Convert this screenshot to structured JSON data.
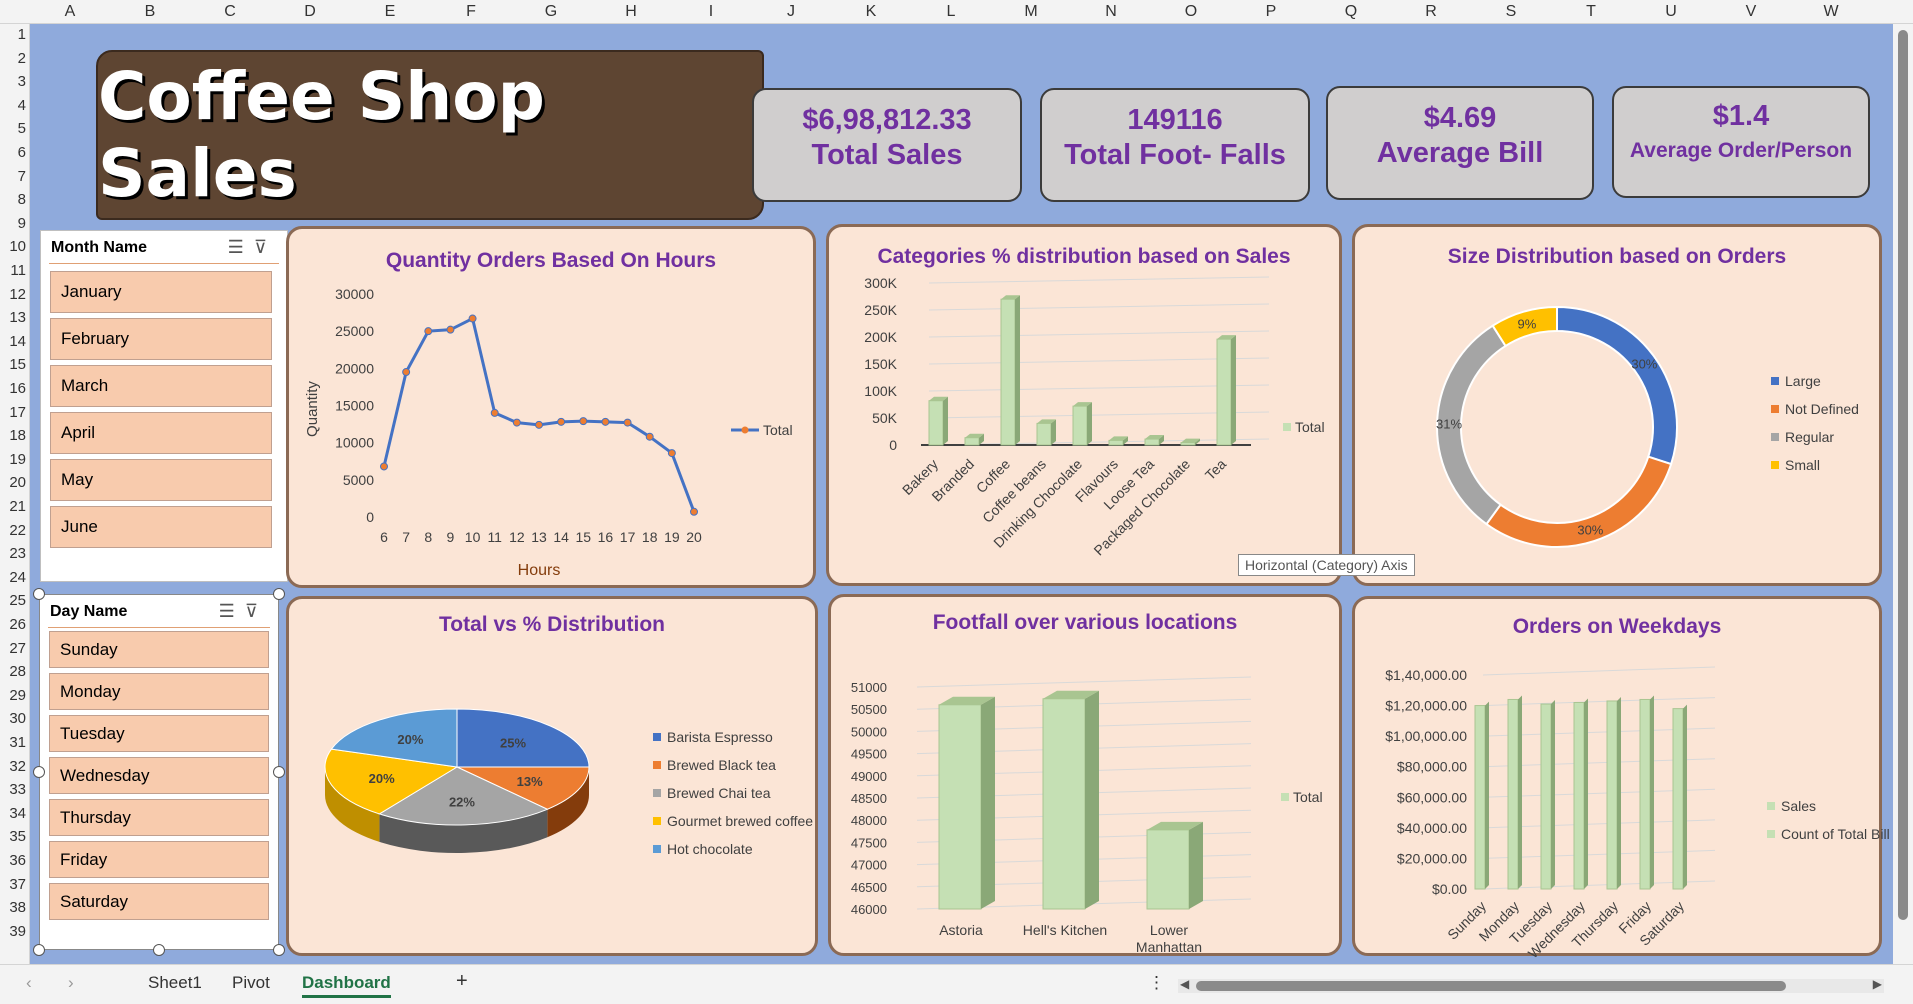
{
  "columns": [
    "A",
    "B",
    "C",
    "D",
    "E",
    "F",
    "G",
    "H",
    "I",
    "J",
    "K",
    "L",
    "M",
    "N",
    "O",
    "P",
    "Q",
    "R",
    "S",
    "T",
    "U",
    "V",
    "W"
  ],
  "rows": [
    "1",
    "2",
    "3",
    "4",
    "5",
    "6",
    "7",
    "8",
    "9",
    "10",
    "11",
    "12",
    "13",
    "14",
    "15",
    "16",
    "17",
    "18",
    "19",
    "20",
    "21",
    "22",
    "23",
    "24",
    "25",
    "26",
    "27",
    "28",
    "29",
    "30",
    "31",
    "32",
    "33",
    "34",
    "35",
    "36",
    "37",
    "38",
    "39"
  ],
  "dashboard_title": "Coffee Shop Sales",
  "kpis": [
    {
      "value": "$6,98,812.33",
      "label": "Total Sales"
    },
    {
      "value": "149116",
      "label": "Total Foot- Falls"
    },
    {
      "value": "$4.69",
      "label": "Average Bill"
    },
    {
      "value": "$1.4",
      "label": "Average Order/Person"
    }
  ],
  "month_slicer": {
    "title": "Month Name",
    "items": [
      "January",
      "February",
      "March",
      "April",
      "May",
      "June"
    ]
  },
  "day_slicer": {
    "title": "Day Name",
    "items": [
      "Sunday",
      "Monday",
      "Tuesday",
      "Wednesday",
      "Thursday",
      "Friday",
      "Saturday"
    ]
  },
  "tooltip": "Horizontal (Category) Axis",
  "tabs": {
    "sheet1": "Sheet1",
    "pivot": "Pivot",
    "dashboard": "Dashboard",
    "add": "+"
  },
  "colors": {
    "canvas": "#8faadc",
    "panel": "#fbe5d6",
    "title_purple": "#7030a0",
    "bar_green": "#c5e0b4",
    "line_blue": "#4472c4"
  },
  "chart_data": [
    {
      "type": "line",
      "title": "Quantity Orders Based On Hours",
      "xlabel": "Hours",
      "ylabel": "Quantity",
      "x": [
        6,
        7,
        8,
        9,
        10,
        11,
        12,
        13,
        14,
        15,
        16,
        17,
        18,
        19,
        20
      ],
      "series": [
        {
          "name": "Total",
          "values": [
            6800,
            19500,
            25000,
            25200,
            26700,
            14000,
            12700,
            12400,
            12800,
            12900,
            12800,
            12700,
            10800,
            8600,
            700
          ]
        }
      ],
      "ylim": [
        0,
        30000
      ],
      "yticks": [
        "0",
        "5000",
        "10000",
        "15000",
        "20000",
        "25000",
        "30000"
      ],
      "legend": "right"
    },
    {
      "type": "bar",
      "title": "Categories % distribution based on Sales",
      "categories": [
        "Bakery",
        "Branded",
        "Coffee",
        "Coffee beans",
        "Drinking Chocolate",
        "Flavours",
        "Loose Tea",
        "Packaged Chocolate",
        "Tea"
      ],
      "series": [
        {
          "name": "Total",
          "values": [
            82000,
            13500,
            270000,
            40000,
            72000,
            8500,
            11000,
            4500,
            196000
          ]
        }
      ],
      "ylim": [
        0,
        300000
      ],
      "yticks": [
        "0",
        "50K",
        "100K",
        "150K",
        "200K",
        "250K",
        "300K"
      ],
      "legend": "right"
    },
    {
      "type": "pie",
      "title": "Size Distribution based on Orders",
      "labels": [
        "Large",
        "Not Defined",
        "Regular",
        "Small"
      ],
      "values": [
        30,
        30,
        31,
        9
      ],
      "value_labels": [
        "30%",
        "30%",
        "31%",
        "9%"
      ],
      "colors": [
        "#4472c4",
        "#ed7d31",
        "#a5a5a5",
        "#ffc000"
      ],
      "legend": "right"
    },
    {
      "type": "pie",
      "title": "Total vs % Distribution",
      "labels": [
        "Barista Espresso",
        "Brewed Black tea",
        "Brewed Chai tea",
        "Gourmet brewed coffee",
        "Hot chocolate"
      ],
      "values": [
        25,
        13,
        22,
        20,
        20
      ],
      "value_labels": [
        "25%",
        "13%",
        "22%",
        "20%",
        "20%"
      ],
      "colors": [
        "#4472c4",
        "#ed7d31",
        "#a5a5a5",
        "#ffc000",
        "#5b9bd5"
      ],
      "legend": "right"
    },
    {
      "type": "bar",
      "title": "Footfall over various locations",
      "categories": [
        "Astoria",
        "Hell's Kitchen",
        "Lower Manhattan"
      ],
      "series": [
        {
          "name": "Total",
          "values": [
            50599,
            50735,
            47782
          ]
        }
      ],
      "ylim": [
        46000,
        51000
      ],
      "yticks": [
        "46000",
        "46500",
        "47000",
        "47500",
        "48000",
        "48500",
        "49000",
        "49500",
        "50000",
        "50500",
        "51000"
      ],
      "legend": "right"
    },
    {
      "type": "bar",
      "title": "Orders on Weekdays",
      "categories": [
        "Sunday",
        "Monday",
        "Tuesday",
        "Wednesday",
        "Thursday",
        "Friday",
        "Saturday"
      ],
      "series": [
        {
          "name": "Sales",
          "values": [
            120000,
            124000,
            121000,
            122000,
            123000,
            124000,
            118000
          ]
        },
        {
          "name": "Count of Total Bill",
          "values": [
            0,
            0,
            0,
            0,
            0,
            0,
            0
          ]
        }
      ],
      "ylim": [
        0,
        140000
      ],
      "yticks": [
        "$0.00",
        "$20,000.00",
        "$40,000.00",
        "$60,000.00",
        "$80,000.00",
        "$1,00,000.00",
        "$1,20,000.00",
        "$1,40,000.00"
      ],
      "legend": "right"
    }
  ]
}
